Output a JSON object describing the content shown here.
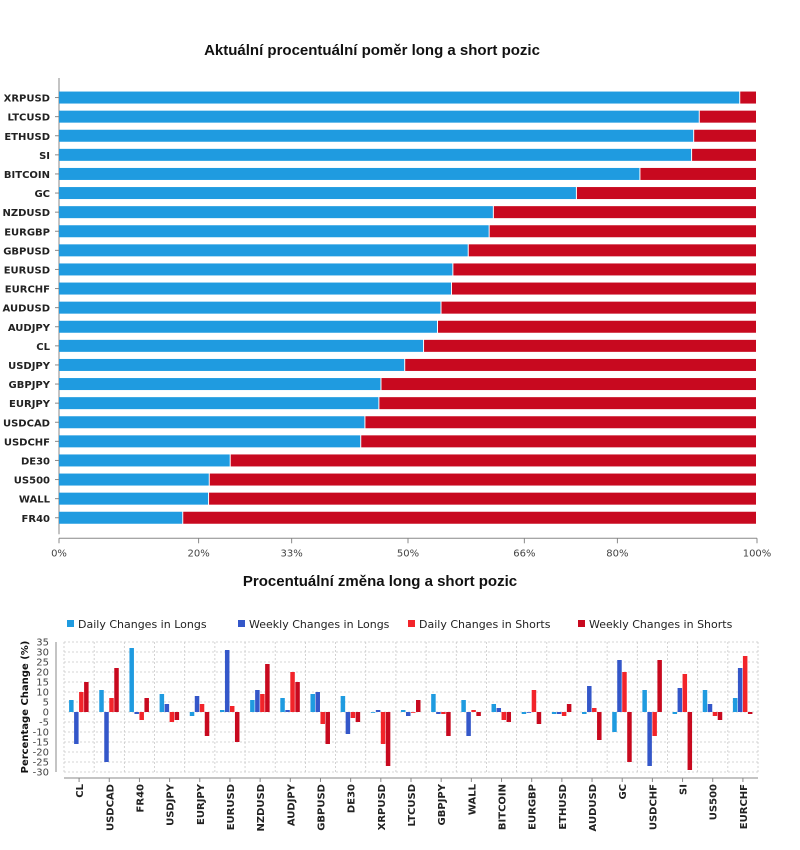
{
  "chart_data": [
    {
      "type": "bar",
      "orientation": "horizontal",
      "stacked": true,
      "title": "Aktuální procentuální poměr long a short pozic",
      "categories": [
        "XRPUSD",
        "LTCUSD",
        "ETHUSD",
        "SI",
        "BITCOIN",
        "GC",
        "NZDUSD",
        "EURGBP",
        "GBPUSD",
        "EURUSD",
        "EURCHF",
        "AUDUSD",
        "AUDJPY",
        "CL",
        "USDJPY",
        "GBPJPY",
        "EURJPY",
        "USDCAD",
        "USDCHF",
        "DE30",
        "US500",
        "WALL",
        "FR40"
      ],
      "series": [
        {
          "key": "long",
          "color": "#1f9be0",
          "values": [
            97.6,
            91.8,
            91.0,
            90.7,
            83.3,
            74.2,
            62.3,
            61.7,
            58.7,
            56.5,
            56.3,
            54.8,
            54.3,
            52.3,
            49.6,
            46.2,
            45.9,
            43.9,
            43.3,
            24.6,
            21.6,
            21.5,
            17.8
          ]
        },
        {
          "key": "short",
          "color": "#c8091f",
          "values": [
            2.4,
            8.2,
            9.0,
            9.3,
            16.7,
            25.8,
            37.7,
            38.3,
            41.3,
            43.5,
            43.7,
            45.2,
            45.7,
            47.7,
            50.4,
            53.8,
            54.1,
            56.1,
            56.7,
            75.4,
            78.4,
            78.5,
            82.2
          ]
        }
      ],
      "xlim": [
        0,
        100
      ],
      "x_ticks": [
        {
          "value": 0,
          "label": "0%"
        },
        {
          "value": 20,
          "label": "20%"
        },
        {
          "value": 33.33,
          "label": "33%"
        },
        {
          "value": 50,
          "label": "50%"
        },
        {
          "value": 66.67,
          "label": "66%"
        },
        {
          "value": 80,
          "label": "80%"
        },
        {
          "value": 100,
          "label": "100%"
        }
      ],
      "grid": false
    },
    {
      "type": "bar",
      "title": "Procentuální změna long a short pozic",
      "ylabel": "Percentage Change (%)",
      "legend_position": "top",
      "ylim": [
        -30,
        35
      ],
      "y_ticks": [
        35,
        30,
        25,
        20,
        15,
        10,
        5,
        0,
        -5,
        -10,
        -15,
        -20,
        -25,
        -30
      ],
      "grid": true,
      "categories": [
        "CL",
        "USDCAD",
        "FR40",
        "USDJPY",
        "EURJPY",
        "EURUSD",
        "NZDUSD",
        "AUDJPY",
        "GBPUSD",
        "DE30",
        "XRPUSD",
        "LTCUSD",
        "GBPJPY",
        "WALL",
        "BITCOIN",
        "EURGBP",
        "ETHUSD",
        "AUDUSD",
        "GC",
        "USDCHF",
        "SI",
        "US500",
        "EURCHF"
      ],
      "series": [
        {
          "name": "Daily Changes in Longs",
          "color": "#1f9be0",
          "values": [
            6,
            11,
            32,
            9,
            -2,
            1,
            6,
            7,
            9,
            8,
            0,
            1,
            9,
            6,
            4,
            -1,
            -1,
            -1,
            -10,
            11,
            -1,
            11,
            7
          ]
        },
        {
          "name": "Weekly Changes in Longs",
          "color": "#3457c9",
          "values": [
            -16,
            -25,
            -1,
            4,
            8,
            31,
            11,
            1,
            10,
            -11,
            1,
            -2,
            -1,
            -12,
            2,
            0,
            -1,
            13,
            26,
            -27,
            12,
            4,
            22
          ]
        },
        {
          "name": "Daily Changes in Shorts",
          "color": "#f2242a",
          "values": [
            10,
            7,
            -4,
            -5,
            4,
            3,
            9,
            20,
            -6,
            -3,
            -16,
            0,
            -1,
            1,
            -4,
            11,
            -2,
            2,
            20,
            -12,
            19,
            -2,
            28
          ]
        },
        {
          "name": "Weekly Changes in Shorts",
          "color": "#c8091f",
          "values": [
            15,
            22,
            7,
            -4,
            -12,
            -15,
            24,
            15,
            -16,
            -5,
            -27,
            6,
            -12,
            -2,
            -5,
            -6,
            4,
            -14,
            -25,
            26,
            -29,
            -4,
            -1
          ]
        }
      ]
    }
  ]
}
